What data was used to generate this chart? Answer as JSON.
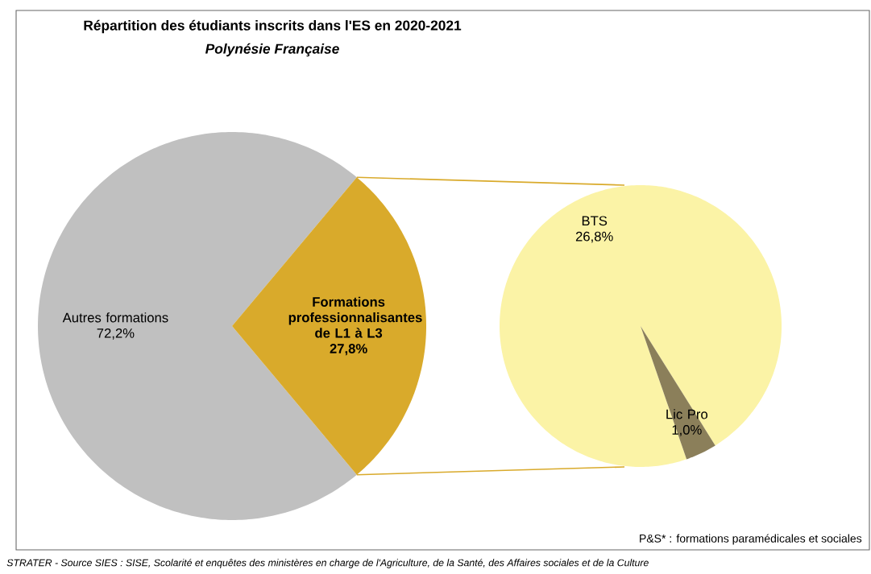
{
  "chart_data": [
    {
      "type": "pie",
      "title": "Répartition des étudiants inscrits dans l'ES en 2020-2021",
      "subtitle": "Polynésie Française",
      "categories": [
        "Autres formations",
        "Formations professionnalisantes de L1 à L3"
      ],
      "values": [
        72.2,
        27.8
      ],
      "colors": [
        "#c0c0c0",
        "#d9aa2b"
      ],
      "value_labels": [
        "72,2%",
        "27,8%"
      ],
      "annotations": [
        "P&S* : formations paramédicales et sociales",
        "STRATER - Source SIES : SISE, Scolarité et enquêtes des ministères en charge de l'Agriculture, de la Santé, des Affaires sociales et de la Culture"
      ]
    },
    {
      "type": "pie",
      "categories": [
        "BTS",
        "Lic Pro"
      ],
      "values": [
        26.8,
        1.0
      ],
      "colors": [
        "#fbf3a6",
        "#8b7f5a"
      ],
      "value_labels": [
        "26,8%",
        "1,0%"
      ]
    }
  ]
}
